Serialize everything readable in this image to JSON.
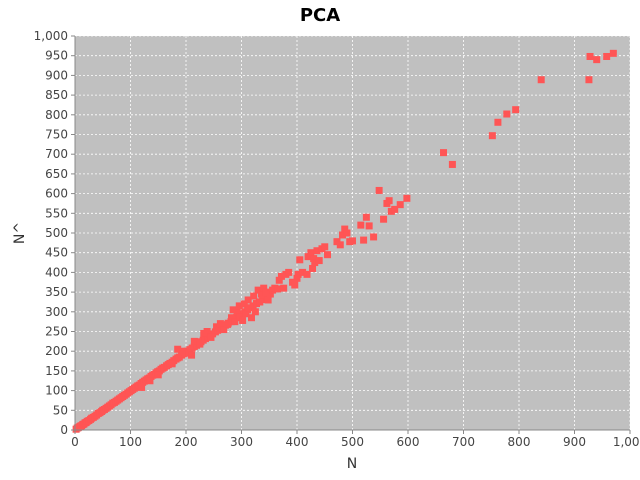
{
  "chart_data": {
    "type": "scatter",
    "title": "PCA",
    "xlabel": "N",
    "ylabel": "N^",
    "xlim": [
      0,
      1000
    ],
    "ylim": [
      0,
      1000
    ],
    "xticks": [
      0,
      100,
      200,
      300,
      400,
      500,
      600,
      700,
      800,
      900,
      1000
    ],
    "yticks": [
      0,
      50,
      100,
      150,
      200,
      250,
      300,
      350,
      400,
      450,
      500,
      550,
      600,
      650,
      700,
      750,
      800,
      850,
      900,
      950,
      1000
    ],
    "xtick_labels": [
      "0",
      "100",
      "200",
      "300",
      "400",
      "500",
      "600",
      "700",
      "800",
      "900",
      "1,000"
    ],
    "ytick_labels": [
      "0",
      "50",
      "100",
      "150",
      "200",
      "250",
      "300",
      "350",
      "400",
      "450",
      "500",
      "550",
      "600",
      "650",
      "700",
      "750",
      "800",
      "850",
      "900",
      "950",
      "1,000"
    ],
    "grid": true,
    "background_color": "#c0c0c0",
    "marker_color": "#ff5555",
    "series": [
      {
        "points": [
          [
            2,
            2
          ],
          [
            4,
            5
          ],
          [
            6,
            6
          ],
          [
            8,
            8
          ],
          [
            10,
            10
          ],
          [
            12,
            11
          ],
          [
            14,
            14
          ],
          [
            16,
            15
          ],
          [
            18,
            18
          ],
          [
            20,
            19
          ],
          [
            22,
            22
          ],
          [
            25,
            24
          ],
          [
            28,
            27
          ],
          [
            30,
            30
          ],
          [
            33,
            32
          ],
          [
            36,
            35
          ],
          [
            39,
            38
          ],
          [
            42,
            42
          ],
          [
            45,
            44
          ],
          [
            48,
            47
          ],
          [
            50,
            50
          ],
          [
            53,
            52
          ],
          [
            56,
            55
          ],
          [
            59,
            58
          ],
          [
            62,
            61
          ],
          [
            65,
            64
          ],
          [
            68,
            68
          ],
          [
            71,
            70
          ],
          [
            74,
            73
          ],
          [
            77,
            76
          ],
          [
            80,
            79
          ],
          [
            83,
            82
          ],
          [
            86,
            85
          ],
          [
            89,
            88
          ],
          [
            92,
            91
          ],
          [
            95,
            94
          ],
          [
            98,
            97
          ],
          [
            101,
            100
          ],
          [
            104,
            103
          ],
          [
            107,
            106
          ],
          [
            110,
            109
          ],
          [
            113,
            112
          ],
          [
            116,
            114
          ],
          [
            119,
            118
          ],
          [
            122,
            121
          ],
          [
            125,
            124
          ],
          [
            128,
            127
          ],
          [
            131,
            130
          ],
          [
            134,
            132
          ],
          [
            137,
            136
          ],
          [
            140,
            139
          ],
          [
            143,
            141
          ],
          [
            146,
            145
          ],
          [
            149,
            148
          ],
          [
            152,
            150
          ],
          [
            155,
            154
          ],
          [
            158,
            157
          ],
          [
            161,
            159
          ],
          [
            165,
            163
          ],
          [
            168,
            166
          ],
          [
            171,
            169
          ],
          [
            175,
            172
          ],
          [
            178,
            176
          ],
          [
            182,
            180
          ],
          [
            185,
            183
          ],
          [
            188,
            185
          ],
          [
            192,
            190
          ],
          [
            195,
            193
          ],
          [
            199,
            196
          ],
          [
            203,
            200
          ],
          [
            207,
            204
          ],
          [
            211,
            208
          ],
          [
            215,
            212
          ],
          [
            219,
            215
          ],
          [
            223,
            220
          ],
          [
            227,
            224
          ],
          [
            231,
            228
          ],
          [
            235,
            232
          ],
          [
            240,
            236
          ],
          [
            244,
            240
          ],
          [
            248,
            244
          ],
          [
            253,
            249
          ],
          [
            257,
            253
          ],
          [
            262,
            258
          ],
          [
            266,
            262
          ],
          [
            271,
            266
          ],
          [
            276,
            271
          ],
          [
            281,
            275
          ],
          [
            286,
            280
          ],
          [
            291,
            285
          ],
          [
            296,
            290
          ],
          [
            301,
            295
          ],
          [
            306,
            300
          ],
          [
            311,
            305
          ],
          [
            316,
            310
          ],
          [
            321,
            315
          ],
          [
            327,
            321
          ],
          [
            332,
            325
          ],
          [
            338,
            331
          ],
          [
            344,
            336
          ],
          [
            120,
            108
          ],
          [
            135,
            125
          ],
          [
            150,
            140
          ],
          [
            175,
            168
          ],
          [
            185,
            205
          ],
          [
            195,
            200
          ],
          [
            205,
            195
          ],
          [
            210,
            190
          ],
          [
            215,
            225
          ],
          [
            225,
            218
          ],
          [
            232,
            245
          ],
          [
            238,
            250
          ],
          [
            245,
            235
          ],
          [
            255,
            262
          ],
          [
            262,
            270
          ],
          [
            268,
            255
          ],
          [
            275,
            268
          ],
          [
            282,
            285
          ],
          [
            285,
            305
          ],
          [
            288,
            275
          ],
          [
            292,
            300
          ],
          [
            296,
            315
          ],
          [
            298,
            288
          ],
          [
            302,
            278
          ],
          [
            305,
            320
          ],
          [
            308,
            295
          ],
          [
            312,
            330
          ],
          [
            315,
            310
          ],
          [
            318,
            285
          ],
          [
            322,
            340
          ],
          [
            325,
            300
          ],
          [
            330,
            355
          ],
          [
            333,
            325
          ],
          [
            336,
            345
          ],
          [
            340,
            360
          ],
          [
            344,
            350
          ],
          [
            348,
            330
          ],
          [
            352,
            345
          ],
          [
            356,
            355
          ],
          [
            360,
            360
          ],
          [
            365,
            358
          ],
          [
            368,
            380
          ],
          [
            372,
            390
          ],
          [
            376,
            360
          ],
          [
            380,
            395
          ],
          [
            385,
            400
          ],
          [
            392,
            375
          ],
          [
            396,
            368
          ],
          [
            400,
            385
          ],
          [
            402,
            395
          ],
          [
            405,
            432
          ],
          [
            410,
            400
          ],
          [
            418,
            395
          ],
          [
            420,
            440
          ],
          [
            425,
            450
          ],
          [
            428,
            410
          ],
          [
            430,
            435
          ],
          [
            432,
            425
          ],
          [
            436,
            455
          ],
          [
            440,
            430
          ],
          [
            445,
            460
          ],
          [
            450,
            465
          ],
          [
            455,
            445
          ],
          [
            472,
            478
          ],
          [
            478,
            470
          ],
          [
            482,
            495
          ],
          [
            486,
            510
          ],
          [
            490,
            500
          ],
          [
            495,
            478
          ],
          [
            500,
            480
          ],
          [
            515,
            520
          ],
          [
            520,
            482
          ],
          [
            525,
            540
          ],
          [
            530,
            518
          ],
          [
            538,
            490
          ],
          [
            548,
            608
          ],
          [
            556,
            535
          ],
          [
            562,
            575
          ],
          [
            566,
            582
          ],
          [
            570,
            555
          ],
          [
            576,
            560
          ],
          [
            586,
            572
          ],
          [
            598,
            588
          ],
          [
            664,
            704
          ],
          [
            680,
            674
          ],
          [
            752,
            747
          ],
          [
            762,
            781
          ],
          [
            778,
            802
          ],
          [
            794,
            813
          ],
          [
            840,
            889
          ],
          [
            926,
            889
          ],
          [
            928,
            948
          ],
          [
            940,
            940
          ],
          [
            958,
            948
          ],
          [
            970,
            956
          ]
        ]
      }
    ]
  }
}
